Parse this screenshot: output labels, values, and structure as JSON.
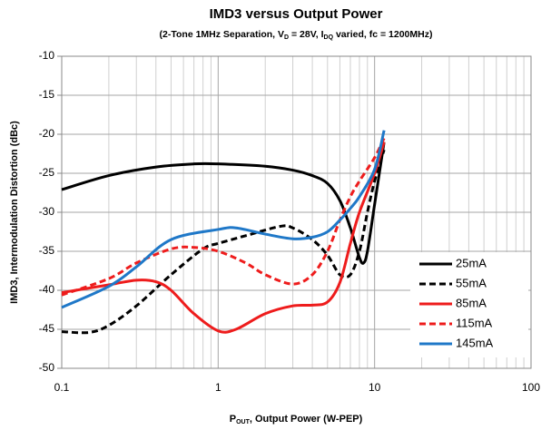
{
  "chart_data": {
    "type": "line",
    "title": "IMD3 versus Output Power",
    "subtitle": [
      "(2-Tone 1MHz Separation, V",
      "D",
      " = 28V, I",
      "DQ",
      " varied, fc = 1200MHz)"
    ],
    "x_label": [
      "P",
      "OUT",
      ", Output Power (W-PEP)"
    ],
    "y_label": "IMD3, Intermodulation Distortion (dBc)",
    "x_log": true,
    "grid": true,
    "legend": "right",
    "xlim": [
      0.1,
      100
    ],
    "xticks": [
      0.1,
      1,
      10,
      100
    ],
    "xminorticks": [
      0.2,
      0.3,
      0.4,
      0.5,
      0.6,
      0.7,
      0.8,
      0.9,
      2,
      3,
      4,
      5,
      6,
      7,
      8,
      9,
      20,
      30,
      40,
      50,
      60,
      70,
      80,
      90
    ],
    "ylim": [
      -50,
      -10
    ],
    "yticks": [
      -50,
      -45,
      -40,
      -35,
      -30,
      -25,
      -20,
      -15,
      -10
    ],
    "series": [
      {
        "name": "25mA",
        "color": "#000000",
        "dashed": false,
        "x": [
          0.1,
          0.2,
          0.4,
          0.7,
          1,
          2,
          3,
          4,
          5,
          6,
          7,
          8,
          8.5,
          9,
          10,
          11.5
        ],
        "values": [
          -27.1,
          -25.3,
          -24.2,
          -23.8,
          -23.8,
          -24.1,
          -24.6,
          -25.3,
          -26.3,
          -28.5,
          -32,
          -35.8,
          -36.5,
          -35,
          -29,
          -21
        ]
      },
      {
        "name": "55mA",
        "color": "#000000",
        "dashed": true,
        "x": [
          0.1,
          0.15,
          0.2,
          0.3,
          0.5,
          0.8,
          1,
          1.5,
          2.5,
          3,
          4,
          5,
          6,
          7,
          8,
          9,
          10,
          11.5
        ],
        "values": [
          -45.3,
          -45.4,
          -44.5,
          -42,
          -38,
          -34.7,
          -34,
          -33,
          -31.8,
          -32,
          -33.5,
          -35.5,
          -38,
          -38,
          -35,
          -30,
          -26,
          -22
        ]
      },
      {
        "name": "85mA",
        "color": "#ee1c1c",
        "dashed": false,
        "x": [
          0.1,
          0.2,
          0.3,
          0.4,
          0.5,
          0.7,
          1,
          1.3,
          2,
          3,
          4,
          5,
          6,
          7,
          8,
          10,
          11.5
        ],
        "values": [
          -40.3,
          -39.3,
          -38.7,
          -38.9,
          -40,
          -43,
          -45.2,
          -45,
          -43,
          -42,
          -41.9,
          -41.5,
          -39,
          -34,
          -30,
          -25,
          -21
        ]
      },
      {
        "name": "115mA",
        "color": "#ee1c1c",
        "dashed": true,
        "x": [
          0.1,
          0.2,
          0.3,
          0.5,
          0.7,
          1,
          1.5,
          2,
          3,
          4,
          5,
          6,
          7,
          8,
          10,
          11.5
        ],
        "values": [
          -40.6,
          -38.5,
          -36.5,
          -34.7,
          -34.5,
          -35,
          -36.5,
          -38,
          -39.2,
          -38,
          -35,
          -31,
          -28,
          -26,
          -23,
          -20.5
        ]
      },
      {
        "name": "145mA",
        "color": "#1f78c8",
        "dashed": false,
        "x": [
          0.1,
          0.2,
          0.3,
          0.5,
          1,
          1.3,
          2,
          3,
          4,
          5,
          6,
          7,
          8,
          10,
          11.5
        ],
        "values": [
          -42.2,
          -39.5,
          -37,
          -33.5,
          -32.2,
          -32,
          -32.8,
          -33.4,
          -33.2,
          -32.5,
          -31,
          -29.5,
          -28,
          -24.5,
          -19.5
        ]
      }
    ]
  }
}
